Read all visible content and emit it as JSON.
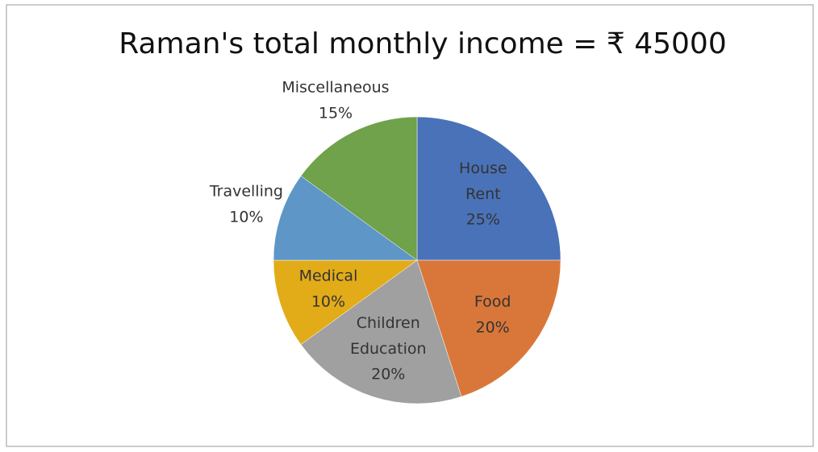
{
  "chart_data": {
    "type": "pie",
    "title": "Raman's total monthly income = ₹ 45000",
    "categories": [
      "House Rent",
      "Food",
      "Children Education",
      "Medical",
      "Travelling",
      "Miscellaneous"
    ],
    "values": [
      25,
      20,
      20,
      10,
      10,
      15
    ],
    "value_labels": [
      "25%",
      "20%",
      "20%",
      "10%",
      "10%",
      "15%"
    ],
    "colors": [
      "#4a72b8",
      "#d9773a",
      "#a0a0a0",
      "#e2ab18",
      "#5e96c8",
      "#6fa24a"
    ]
  }
}
